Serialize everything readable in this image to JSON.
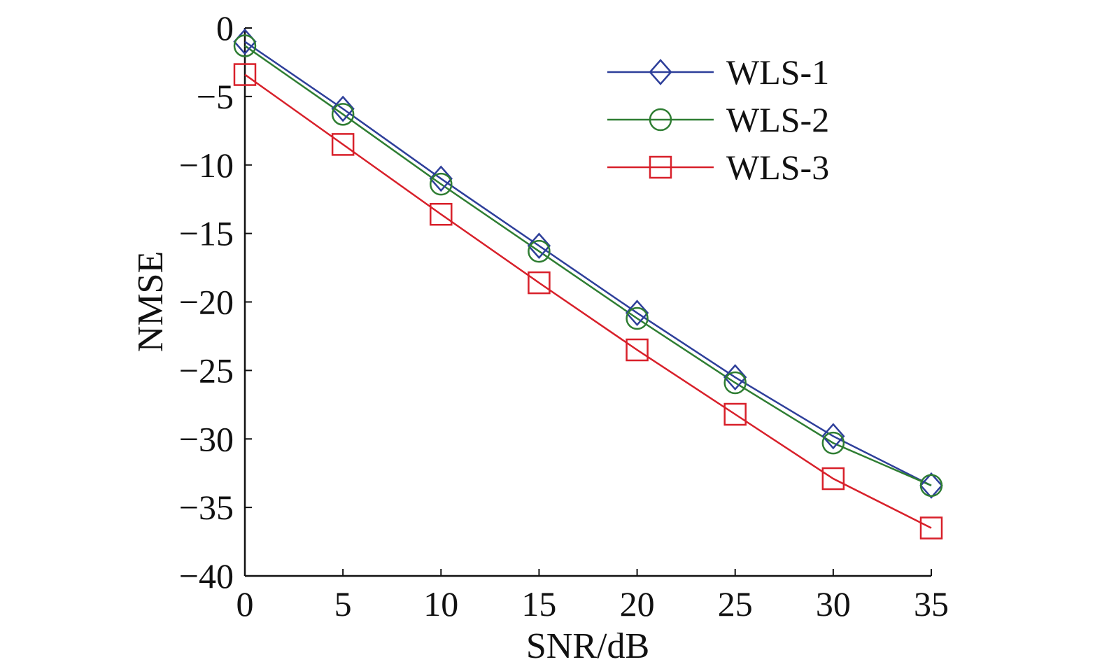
{
  "chart_data": {
    "type": "line",
    "title": "",
    "xlabel": "SNR/dB",
    "ylabel": "NMSE",
    "xlim": [
      0,
      35
    ],
    "ylim": [
      -40,
      0
    ],
    "xticks": [
      0,
      5,
      10,
      15,
      20,
      25,
      30,
      35
    ],
    "yticks": [
      0,
      -5,
      -10,
      -15,
      -20,
      -25,
      -30,
      -35,
      -40
    ],
    "ytick_labels": [
      "0",
      "−5",
      "−10",
      "−15",
      "−20",
      "−25",
      "−30",
      "−35",
      "−40"
    ],
    "grid": false,
    "legend_position": "top-right",
    "x": [
      0,
      5,
      10,
      15,
      20,
      25,
      30,
      35
    ],
    "series": [
      {
        "name": "WLS-1",
        "marker": "diamond",
        "color": "#2e3f9a",
        "values": [
          -1.0,
          -5.9,
          -11.0,
          -15.9,
          -20.8,
          -25.5,
          -29.8,
          -33.4
        ]
      },
      {
        "name": "WLS-2",
        "marker": "circle",
        "color": "#2e7d32",
        "values": [
          -1.3,
          -6.3,
          -11.4,
          -16.3,
          -21.2,
          -25.9,
          -30.3,
          -33.4
        ]
      },
      {
        "name": "WLS-3",
        "marker": "square",
        "color": "#d8202a",
        "values": [
          -3.4,
          -8.5,
          -13.6,
          -18.6,
          -23.5,
          -28.2,
          -32.9,
          -36.5
        ]
      }
    ]
  }
}
